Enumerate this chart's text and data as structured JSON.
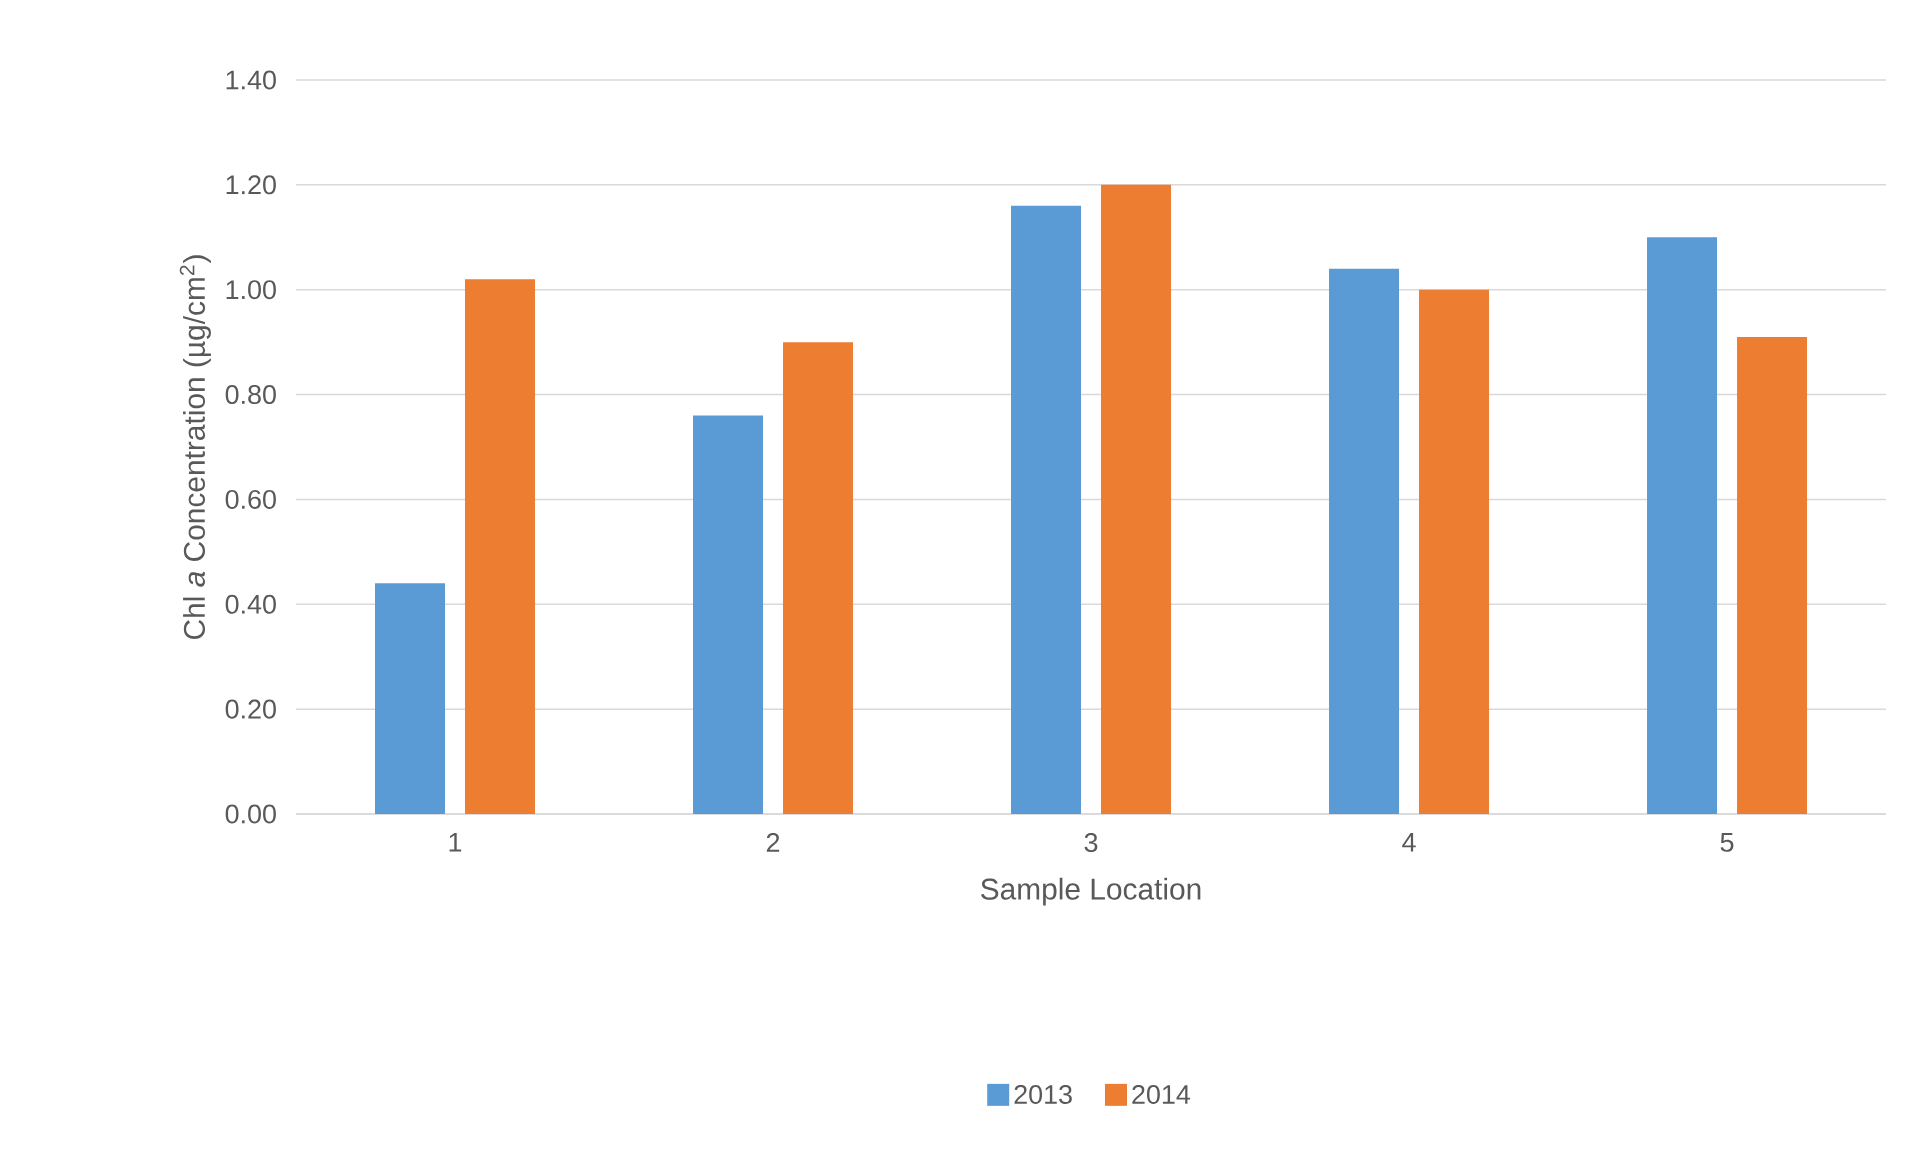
{
  "chart_data": {
    "type": "bar",
    "xlabel": "Sample Location",
    "ylabel": "Chl *a* Concentration (µg/cm$^{2}$)",
    "categories": [
      "1",
      "2",
      "3",
      "4",
      "5"
    ],
    "series": [
      {
        "name": "2013",
        "color": "#5b9bd5",
        "values": [
          0.44,
          0.76,
          1.16,
          1.04,
          1.1
        ]
      },
      {
        "name": "2014",
        "color": "#ed7d31",
        "values": [
          1.02,
          0.9,
          1.2,
          1.0,
          0.91
        ]
      }
    ],
    "ylim": [
      0,
      1.4
    ],
    "yticks": [
      {
        "value": 0,
        "label": "0.00"
      },
      {
        "value": 0.2,
        "label": "0.20"
      },
      {
        "value": 0.4,
        "label": "0.40"
      },
      {
        "value": 0.6,
        "label": "0.60"
      },
      {
        "value": 0.8,
        "label": "0.80"
      },
      {
        "value": 1.0,
        "label": "1.00"
      },
      {
        "value": 1.2,
        "label": "1.20"
      },
      {
        "value": 1.4,
        "label": "1.40"
      }
    ],
    "grid": "y",
    "legend": "bottom"
  }
}
